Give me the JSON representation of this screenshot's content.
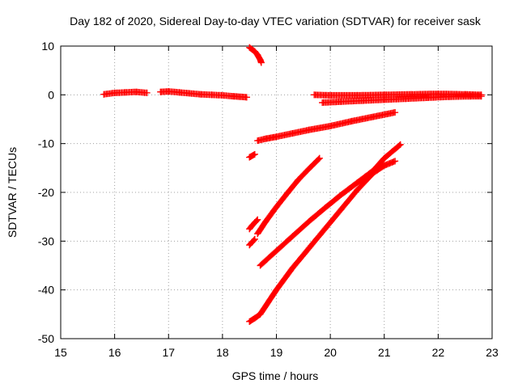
{
  "chart_data": {
    "type": "scatter",
    "title": "Day 182 of 2020, Sidereal Day-to-day VTEC variation (SDTVAR) for receiver sask",
    "xlabel": "GPS time / hours",
    "ylabel": "SDTVAR / TECUs",
    "xlim": [
      15,
      23
    ],
    "ylim": [
      -50,
      10
    ],
    "xticks": [
      15,
      16,
      17,
      18,
      19,
      20,
      21,
      22,
      23
    ],
    "yticks": [
      10,
      0,
      -10,
      -20,
      -30,
      -40,
      -50
    ],
    "xtick_labels": [
      "15",
      "16",
      "17",
      "18",
      "19",
      "20",
      "21",
      "22",
      "23"
    ],
    "ytick_labels": [
      "10",
      "0",
      "-10",
      "-20",
      "-30",
      "-40",
      "-50"
    ],
    "grid": true,
    "legend": "none",
    "marker": "plus",
    "color": "#ff0000",
    "series": [
      {
        "x": [
          15.8,
          16.0,
          16.2,
          16.4,
          16.6
        ],
        "y": [
          0.1,
          0.4,
          0.5,
          0.6,
          0.4
        ]
      },
      {
        "x": [
          16.85,
          17.0,
          17.2,
          17.4,
          17.6,
          17.8,
          18.0,
          18.2,
          18.45
        ],
        "y": [
          0.6,
          0.7,
          0.5,
          0.3,
          0.1,
          0.0,
          -0.1,
          -0.3,
          -0.5
        ]
      },
      {
        "x": [
          18.5,
          18.55,
          18.6,
          18.65,
          18.7,
          18.72
        ],
        "y": [
          9.7,
          9.3,
          8.9,
          8.2,
          7.2,
          6.6
        ]
      },
      {
        "x": [
          18.5,
          18.6
        ],
        "y": [
          -12.8,
          -12.2
        ]
      },
      {
        "x": [
          18.65,
          18.8,
          19.0,
          19.3,
          19.6,
          20.0,
          20.4,
          20.8,
          21.2
        ],
        "y": [
          -9.4,
          -9.0,
          -8.6,
          -7.9,
          -7.2,
          -6.4,
          -5.4,
          -4.5,
          -3.6
        ]
      },
      {
        "x": [
          19.7,
          20.0,
          20.5,
          21.0,
          21.5,
          22.0,
          22.5,
          22.8
        ],
        "y": [
          0.0,
          -0.1,
          -0.1,
          0.0,
          0.1,
          0.2,
          0.1,
          0.0
        ]
      },
      {
        "x": [
          19.85,
          20.2,
          20.6,
          21.0,
          21.4,
          21.8,
          22.2,
          22.6,
          22.8
        ],
        "y": [
          -1.6,
          -1.4,
          -1.2,
          -1.0,
          -0.8,
          -0.6,
          -0.4,
          -0.3,
          -0.3
        ]
      },
      {
        "x": [
          18.5,
          18.55,
          18.6,
          18.65
        ],
        "y": [
          -27.5,
          -26.8,
          -26.2,
          -25.6
        ]
      },
      {
        "x": [
          18.5,
          18.55,
          18.6
        ],
        "y": [
          -30.8,
          -30.2,
          -29.6
        ]
      },
      {
        "x": [
          18.65,
          18.8,
          19.0,
          19.2,
          19.4,
          19.6,
          19.8
        ],
        "y": [
          -28.5,
          -26.0,
          -23.0,
          -20.2,
          -17.5,
          -15.2,
          -13.0
        ]
      },
      {
        "x": [
          18.7,
          19.0,
          19.3,
          19.6,
          19.9,
          20.2,
          20.5,
          20.8,
          21.0,
          21.3
        ],
        "y": [
          -35.0,
          -32.0,
          -29.0,
          -26.0,
          -23.2,
          -20.5,
          -18.0,
          -15.5,
          -13.0,
          -10.2
        ]
      },
      {
        "x": [
          18.5,
          18.6,
          18.7
        ],
        "y": [
          -46.5,
          -45.8,
          -45.0
        ]
      },
      {
        "x": [
          18.7,
          19.0,
          19.3,
          19.6,
          19.9,
          20.2,
          20.5,
          20.8,
          21.0,
          21.2
        ],
        "y": [
          -45.0,
          -40.0,
          -35.5,
          -31.5,
          -27.5,
          -23.5,
          -19.5,
          -16.0,
          -14.5,
          -13.6
        ]
      }
    ]
  }
}
